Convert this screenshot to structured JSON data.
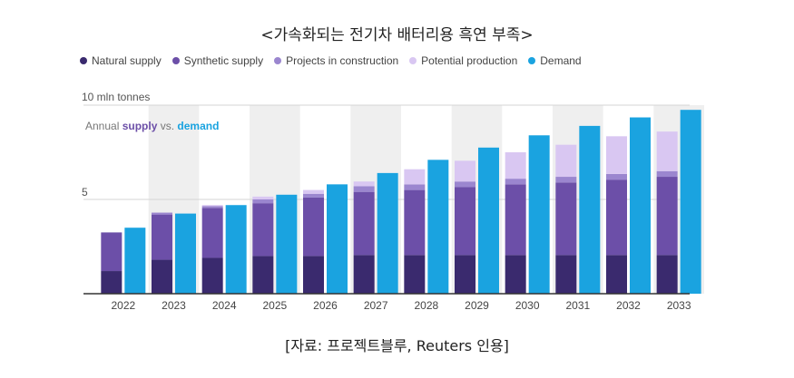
{
  "header": {
    "title": "<가속화되는 전기차 배터리용 흑연 부족>"
  },
  "legend": [
    {
      "label": "Natural supply",
      "color": "#3a2a6e"
    },
    {
      "label": "Synthetic supply",
      "color": "#6c4fa8"
    },
    {
      "label": "Projects in construction",
      "color": "#9b86cf"
    },
    {
      "label": "Potential production",
      "color": "#d9c7f2"
    },
    {
      "label": "Demand",
      "color": "#1aa3e0"
    }
  ],
  "footer": {
    "source": "[자료: 프로젝트블루, Reuters 인용]"
  },
  "chart_data": {
    "type": "bar",
    "subtitle_prefix": "Annual ",
    "subtitle_supply": "supply",
    "subtitle_vs": " vs. ",
    "subtitle_demand": "demand",
    "ylabel": "10 mln tonnes",
    "yticks": [
      {
        "value": 5,
        "label": "5"
      }
    ],
    "ylim": [
      0,
      10
    ],
    "grid": true,
    "legend_position": "top",
    "categories": [
      "2022",
      "2023",
      "2024",
      "2025",
      "2026",
      "2027",
      "2028",
      "2029",
      "2030",
      "2031",
      "2032",
      "2033"
    ],
    "supply_stack": [
      {
        "name": "Natural supply",
        "color": "#3a2a6e",
        "values": [
          1.2,
          1.8,
          1.9,
          2.0,
          2.0,
          2.05,
          2.05,
          2.05,
          2.05,
          2.05,
          2.05,
          2.05
        ]
      },
      {
        "name": "Synthetic supply",
        "color": "#6c4fa8",
        "values": [
          2.05,
          2.4,
          2.65,
          2.8,
          3.1,
          3.35,
          3.45,
          3.6,
          3.75,
          3.85,
          4.0,
          4.15
        ]
      },
      {
        "name": "Projects in construction",
        "color": "#9b86cf",
        "values": [
          0.0,
          0.1,
          0.1,
          0.2,
          0.2,
          0.3,
          0.3,
          0.3,
          0.3,
          0.3,
          0.3,
          0.3
        ]
      },
      {
        "name": "Potential production",
        "color": "#d9c7f2",
        "values": [
          0.0,
          0.0,
          0.05,
          0.15,
          0.2,
          0.25,
          0.8,
          1.1,
          1.4,
          1.7,
          2.0,
          2.1
        ]
      }
    ],
    "demand": {
      "name": "Demand",
      "color": "#1aa3e0",
      "values": [
        3.5,
        4.25,
        4.7,
        5.25,
        5.8,
        6.4,
        7.1,
        7.75,
        8.4,
        8.9,
        9.35,
        9.75
      ]
    },
    "shaded_years": [
      "2023",
      "2025",
      "2027",
      "2029",
      "2031",
      "2033"
    ]
  }
}
